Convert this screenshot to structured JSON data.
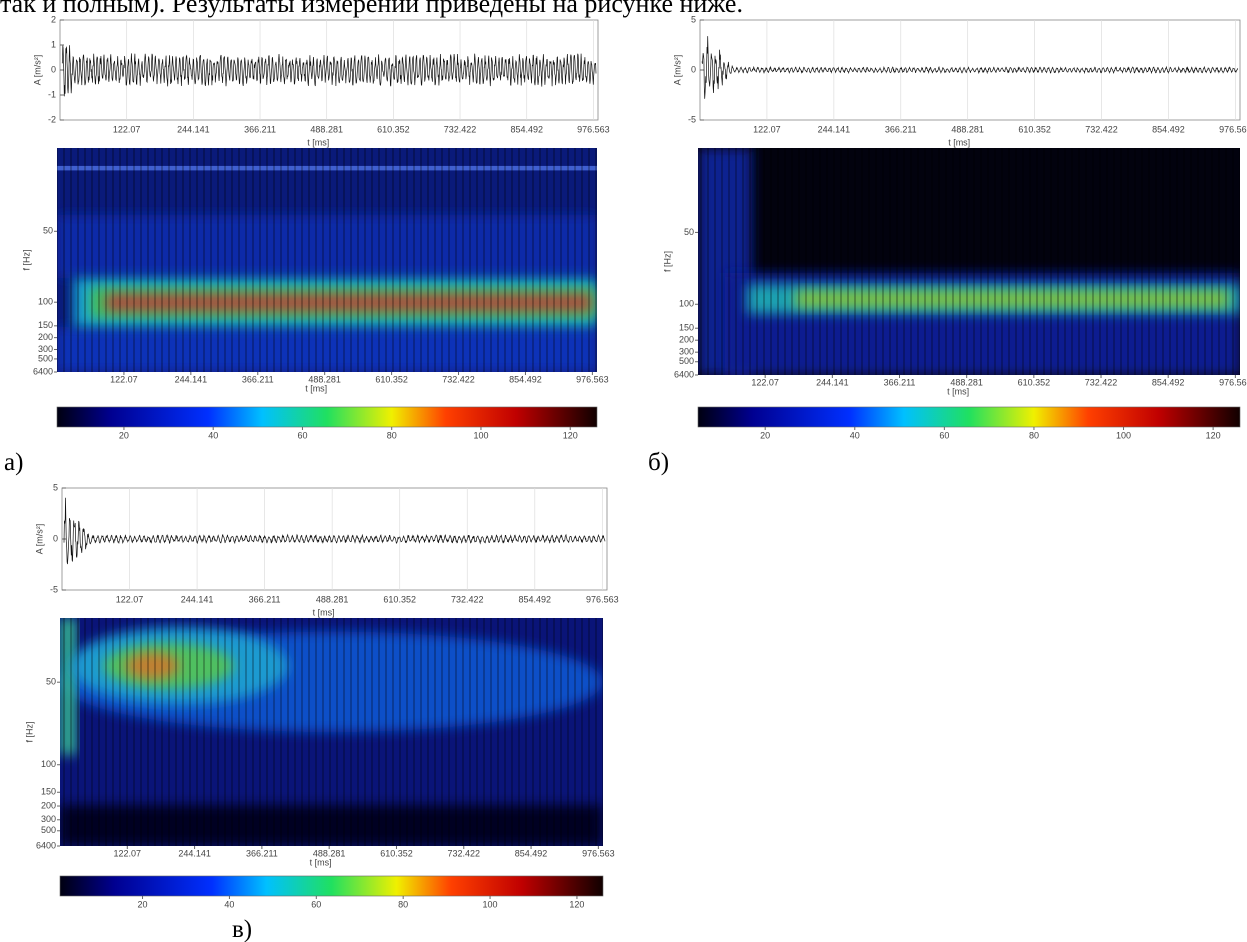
{
  "header": {
    "text": "так и полным). Результаты измерений приведены на рисунке ниже."
  },
  "figures": [
    {
      "label": "а)",
      "signal": {
        "y_label": "A [m/s²]",
        "x_label": "t [ms]",
        "xlim": [
          0,
          985
        ],
        "xticks": [
          122.07,
          244.141,
          366.211,
          488.281,
          610.352,
          732.422,
          854.492,
          976.563
        ],
        "ylim": [
          -2,
          2
        ],
        "yticks": [
          -2,
          -1,
          0,
          1,
          2
        ]
      },
      "scalogram": {
        "y_label": "f [Hz]",
        "x_label": "t [ms]",
        "xlim": [
          0,
          985
        ],
        "xticks": [
          122.07,
          244.141,
          366.211,
          488.281,
          610.352,
          732.422,
          854.492,
          976.563
        ],
        "ylim": [
          31.5,
          6400
        ],
        "y_scale": "reciprocal",
        "yticks": [
          50,
          100,
          150,
          200,
          300,
          500,
          6400
        ]
      },
      "colorbar": {
        "lim": [
          5,
          126
        ],
        "ticks": [
          20,
          40,
          60,
          80,
          100,
          120
        ]
      }
    },
    {
      "label": "б)",
      "signal": {
        "y_label": "A [m/s²]",
        "x_label": "t [ms]",
        "xlim": [
          0,
          985
        ],
        "xticks": [
          122.07,
          244.141,
          366.211,
          488.281,
          610.352,
          732.422,
          854.492,
          976.563
        ],
        "ylim": [
          -5,
          5
        ],
        "yticks": [
          -5,
          0,
          5
        ]
      },
      "scalogram": {
        "y_label": "f [Hz]",
        "x_label": "t [ms]",
        "xlim": [
          0,
          985
        ],
        "xticks": [
          122.07,
          244.141,
          366.211,
          488.281,
          610.352,
          732.422,
          854.492,
          976.563
        ],
        "ylim": [
          31.5,
          6400
        ],
        "y_scale": "reciprocal",
        "yticks": [
          50,
          100,
          150,
          200,
          300,
          500,
          6400
        ]
      },
      "colorbar": {
        "lim": [
          5,
          126
        ],
        "ticks": [
          20,
          40,
          60,
          80,
          100,
          120
        ]
      }
    },
    {
      "label": "в)",
      "signal": {
        "y_label": "A [m/s²]",
        "x_label": "t [ms]",
        "xlim": [
          0,
          985
        ],
        "xticks": [
          122.07,
          244.141,
          366.211,
          488.281,
          610.352,
          732.422,
          854.492,
          976.563
        ],
        "ylim": [
          -5,
          5
        ],
        "yticks": [
          -5,
          0,
          5
        ]
      },
      "scalogram": {
        "y_label": "f [Hz]",
        "x_label": "t [ms]",
        "xlim": [
          0,
          985
        ],
        "xticks": [
          122.07,
          244.141,
          366.211,
          488.281,
          610.352,
          732.422,
          854.492,
          976.563
        ],
        "ylim": [
          36,
          6400
        ],
        "y_scale": "reciprocal",
        "yticks": [
          50,
          100,
          150,
          200,
          300,
          500,
          6400
        ]
      },
      "colorbar": {
        "lim": [
          1,
          126
        ],
        "ticks": [
          20,
          40,
          60,
          80,
          100,
          120
        ]
      }
    }
  ]
}
